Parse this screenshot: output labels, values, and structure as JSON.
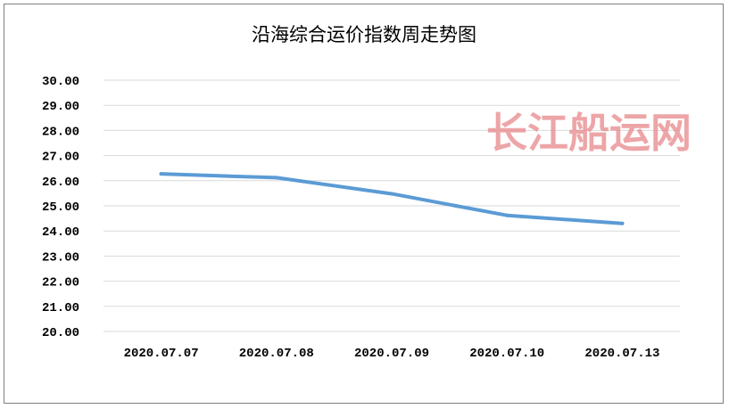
{
  "chart_data": {
    "type": "line",
    "title": "沿海综合运价指数周走势图",
    "xlabel": "",
    "ylabel": "",
    "categories": [
      "2020.07.07",
      "2020.07.08",
      "2020.07.09",
      "2020.07.10",
      "2020.07.13"
    ],
    "series": [
      {
        "values": [
          26.27,
          26.12,
          25.48,
          24.62,
          24.3
        ],
        "color": "#5b9bd5"
      }
    ],
    "ylim": [
      20,
      30
    ],
    "yticks": [
      "20.00",
      "21.00",
      "22.00",
      "23.00",
      "24.00",
      "25.00",
      "26.00",
      "27.00",
      "28.00",
      "29.00",
      "30.00"
    ],
    "grid": true,
    "legend": "none"
  },
  "watermark": "长江船运网",
  "colors": {
    "gridline": "#d9d9d9",
    "frame": "#7f7f7f",
    "watermark": "#e8888a"
  }
}
